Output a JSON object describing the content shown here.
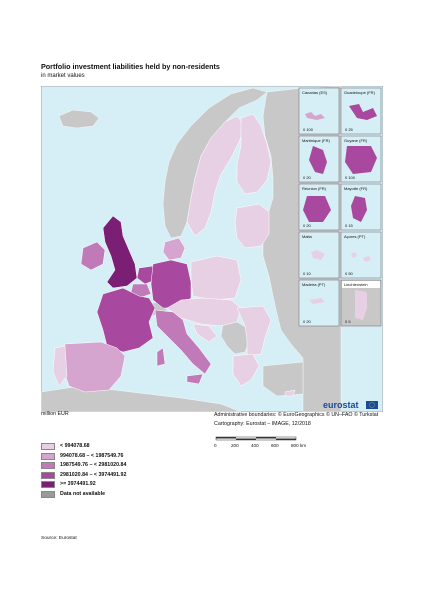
{
  "header": {
    "title": "Portfolio investment liabilities held by non-residents",
    "subtitle": "in market values"
  },
  "map": {
    "insets": [
      {
        "label": "Canarias (ES)",
        "scale": "0  100"
      },
      {
        "label": "Guadeloupe (FR)",
        "scale": "0  25"
      },
      {
        "label": "Martinique (FR)",
        "scale": "0  20"
      },
      {
        "label": "Guyane (FR)",
        "scale": "0  100"
      },
      {
        "label": "Réunion (FR)",
        "scale": "0  20"
      },
      {
        "label": "Mayotte (FR)",
        "scale": "0  15"
      },
      {
        "label": "Malta",
        "scale": "0  10"
      },
      {
        "label": "Açores (PT)",
        "scale": "0  50"
      },
      {
        "label": "Madeira (PT)",
        "scale": "0  20"
      },
      {
        "label": "Liechtenstein",
        "scale": "0  5"
      }
    ],
    "logo_text": "eurostat",
    "colors": {
      "sea": "#d6eef5",
      "non_data": "#c8c8c8",
      "class1": "#e8d0e4",
      "class2": "#d6a5cf",
      "class3": "#c07ab8",
      "class4": "#a8489e",
      "class5": "#7a1f74",
      "na": "#9a9a9a"
    }
  },
  "footer": {
    "unit": "million EUR",
    "credits_line1": "Administrative boundaries: © EuroGeographics © UN–FAO © Turkstat",
    "credits_line2": "Cartography: Eurostat – IMAGE, 12/2018",
    "scale_labels": [
      "0",
      "200",
      "400",
      "600",
      "800 km"
    ],
    "source": "Source: Eurostat"
  },
  "legend": {
    "items": [
      {
        "label": "< 994078.68",
        "color": "#e8d0e4"
      },
      {
        "label": "994078.68 – < 1987549.76",
        "color": "#d6a5cf"
      },
      {
        "label": "1987549.76 – < 2981020.84",
        "color": "#c07ab8"
      },
      {
        "label": "2981020.84 – < 3974491.92",
        "color": "#a8489e"
      },
      {
        "label": ">= 3974491.92",
        "color": "#7a1f74"
      },
      {
        "label": "Data not available",
        "color": "#9a9a9a"
      }
    ]
  }
}
